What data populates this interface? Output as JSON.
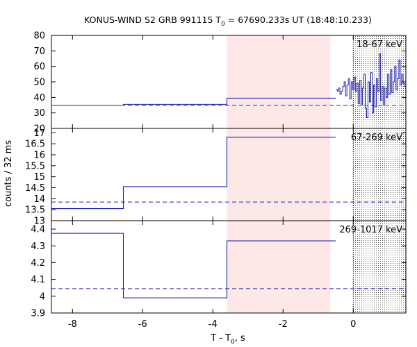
{
  "chart_data": {
    "type": "line",
    "title": "KONUS-WIND S2 GRB 991115 T",
    "title_sub": "0",
    "title_rest": " = 67690.233s UT (18:48:10.233)",
    "xlabel": "T - T",
    "xlabel_sub": "0",
    "xlabel_rest": ", s",
    "ylabel": "counts / 32 ms",
    "xlim": [
      -8.6,
      1.5
    ],
    "x_ticks": [
      -8,
      -6,
      -4,
      -2,
      0
    ],
    "x_tick_labels": [
      "-8",
      "-6",
      "-4",
      "-2",
      "0"
    ],
    "shaded_interval": [
      -3.6,
      -0.65
    ],
    "shaded_color": "#fde8e8",
    "trigger_region_start": 0,
    "line_color": "#2020b0",
    "background_line_color": "#2020b0",
    "panels": [
      {
        "label": "18-67 keV",
        "ylim": [
          20,
          80
        ],
        "y_ticks": [
          20,
          30,
          40,
          50,
          60,
          70,
          80
        ],
        "y_tick_labels": [
          "20",
          "30",
          "40",
          "50",
          "60",
          "70",
          "80"
        ],
        "background_level": 35,
        "steps": [
          {
            "x": [
              -8.6,
              -6.55
            ],
            "y": 35
          },
          {
            "x": [
              -6.55,
              -3.6
            ],
            "y": 35.5
          },
          {
            "x": [
              -3.6,
              -0.5
            ],
            "y": 39.5
          }
        ],
        "fine_series": {
          "x": [
            -0.5,
            -0.45,
            -0.42,
            -0.38,
            -0.34,
            -0.3,
            -0.26,
            -0.22,
            -0.18,
            -0.14,
            -0.1,
            -0.06,
            -0.02,
            0.02,
            0.06,
            0.1,
            0.14,
            0.18,
            0.22,
            0.26,
            0.3,
            0.34,
            0.38,
            0.42,
            0.46,
            0.5,
            0.54,
            0.58,
            0.62,
            0.66,
            0.7,
            0.74,
            0.78,
            0.82,
            0.86,
            0.9,
            0.94,
            0.98,
            1.02,
            1.06,
            1.1,
            1.14,
            1.18,
            1.22,
            1.26,
            1.3,
            1.34,
            1.38,
            1.42,
            1.46
          ],
          "y": [
            45,
            44,
            46,
            42,
            44,
            47,
            50,
            41,
            48,
            52,
            39,
            50,
            45,
            53,
            44,
            49,
            36,
            51,
            35,
            46,
            55,
            33,
            27,
            50,
            37,
            56,
            30,
            48,
            34,
            52,
            44,
            68,
            38,
            47,
            35,
            46,
            40,
            55,
            42,
            58,
            43,
            50,
            60,
            45,
            52,
            64,
            48,
            55,
            49,
            47
          ]
        }
      },
      {
        "label": "67-269 keV",
        "ylim": [
          13,
          17.2
        ],
        "y_ticks": [
          13,
          13.5,
          14,
          14.5,
          15,
          15.5,
          16,
          16.5,
          17
        ],
        "y_tick_labels": [
          "13",
          "13.5",
          "14",
          "14.5",
          "15",
          "15.5",
          "16",
          "16.5",
          "17"
        ],
        "background_level": 13.85,
        "steps": [
          {
            "x": [
              -8.6,
              -6.55
            ],
            "y": 13.55
          },
          {
            "x": [
              -6.55,
              -3.6
            ],
            "y": 14.55
          },
          {
            "x": [
              -3.6,
              -0.5
            ],
            "y": 16.8
          }
        ]
      },
      {
        "label": "269-1017 keV",
        "ylim": [
          3.9,
          4.45
        ],
        "y_ticks": [
          3.9,
          4.0,
          4.1,
          4.2,
          4.3,
          4.4
        ],
        "y_tick_labels": [
          "3.9",
          "4",
          "4.1",
          "4.2",
          "4.3",
          "4.4"
        ],
        "background_level": 4.045,
        "steps": [
          {
            "x": [
              -8.6,
              -6.55
            ],
            "y": 4.375
          },
          {
            "x": [
              -6.55,
              -3.6
            ],
            "y": 3.99
          },
          {
            "x": [
              -3.6,
              -0.5
            ],
            "y": 4.33
          }
        ]
      }
    ]
  }
}
